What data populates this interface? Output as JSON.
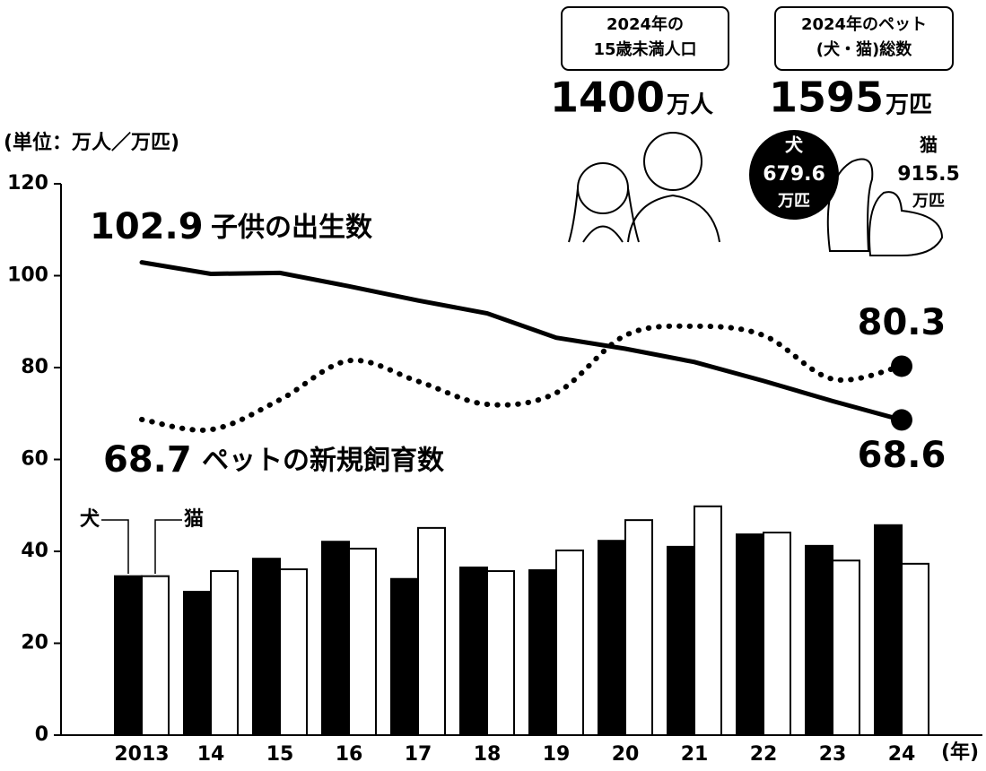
{
  "chart_data": {
    "type": "combo",
    "unit_label": "(単位：万人／万匹)",
    "x_unit": "(年)",
    "categories": [
      "2013",
      "14",
      "15",
      "16",
      "17",
      "18",
      "19",
      "20",
      "21",
      "22",
      "23",
      "24"
    ],
    "ylim": [
      0,
      120
    ],
    "yticks": [
      0,
      20,
      40,
      60,
      80,
      100,
      120
    ],
    "grid": false,
    "series": [
      {
        "name": "犬",
        "type": "bar",
        "color": "#000000",
        "values": [
          34.6,
          31.2,
          38.4,
          42.1,
          34.0,
          36.5,
          35.9,
          42.3,
          41.0,
          43.7,
          41.2,
          45.7
        ]
      },
      {
        "name": "猫",
        "type": "bar",
        "color": "#ffffff",
        "values": [
          34.6,
          35.7,
          36.1,
          40.6,
          45.1,
          35.7,
          40.2,
          46.8,
          49.8,
          44.1,
          38.0,
          37.3
        ]
      },
      {
        "name": "子供の出生数",
        "type": "line",
        "dash": "solid",
        "color": "#000000",
        "values": [
          102.9,
          100.4,
          100.6,
          97.7,
          94.6,
          91.8,
          86.5,
          84.1,
          81.2,
          77.1,
          72.7,
          68.6
        ]
      },
      {
        "name": "ペットの新規飼育数",
        "type": "line",
        "dash": "dotted",
        "color": "#000000",
        "values": [
          68.7,
          66.5,
          73.0,
          81.5,
          77.0,
          72.0,
          74.5,
          87.0,
          89.0,
          87.0,
          77.5,
          80.3
        ]
      }
    ],
    "infoboxes": [
      {
        "title_lines": [
          "2024年の",
          "15歳未満人口"
        ],
        "value": 1400,
        "unit": "万人"
      },
      {
        "title_lines": [
          "2024年のペット",
          "(犬・猫)総数"
        ],
        "value": 1595,
        "unit": "万匹"
      }
    ],
    "breakdown": [
      {
        "label": "犬",
        "value": 679.6,
        "unit": "万匹"
      },
      {
        "label": "猫",
        "value": 915.5,
        "unit": "万匹"
      }
    ]
  }
}
